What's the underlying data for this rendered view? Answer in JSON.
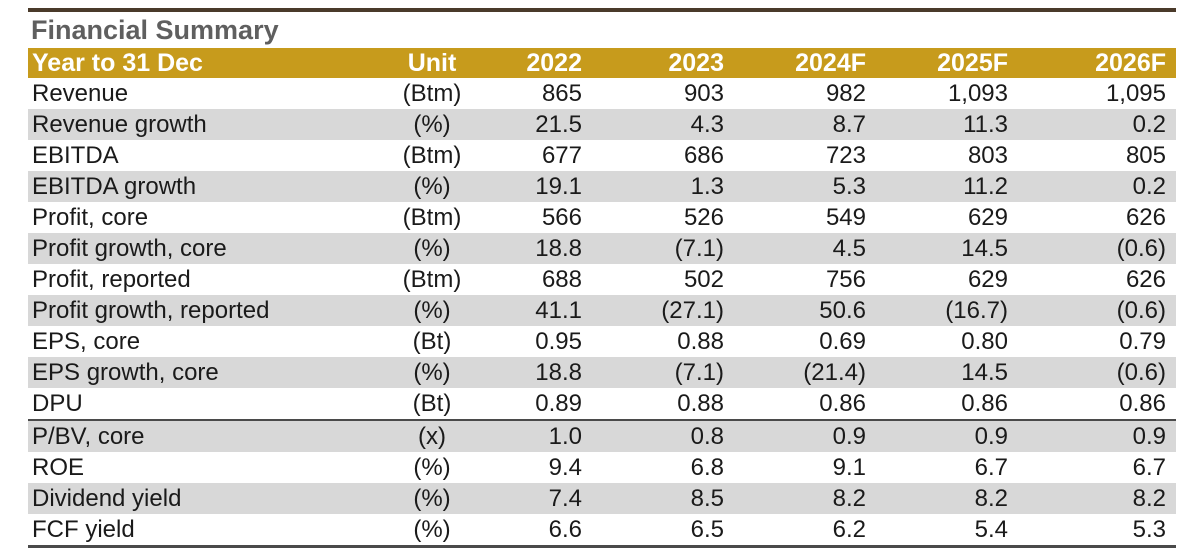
{
  "title": "Financial Summary",
  "header": [
    "Year to 31 Dec",
    "Unit",
    "2022",
    "2023",
    "2024F",
    "2025F",
    "2026F"
  ],
  "rows": [
    {
      "label": "Revenue",
      "unit": "(Btm)",
      "values": [
        "865",
        "903",
        "982",
        "1,093",
        "1,095"
      ]
    },
    {
      "label": "Revenue growth",
      "unit": "(%)",
      "values": [
        "21.5",
        "4.3",
        "8.7",
        "11.3",
        "0.2"
      ]
    },
    {
      "label": "EBITDA",
      "unit": "(Btm)",
      "values": [
        "677",
        "686",
        "723",
        "803",
        "805"
      ]
    },
    {
      "label": "EBITDA growth",
      "unit": "(%)",
      "values": [
        "19.1",
        "1.3",
        "5.3",
        "11.2",
        "0.2"
      ]
    },
    {
      "label": "Profit, core",
      "unit": "(Btm)",
      "values": [
        "566",
        "526",
        "549",
        "629",
        "626"
      ]
    },
    {
      "label": "Profit growth, core",
      "unit": "(%)",
      "values": [
        "18.8",
        "(7.1)",
        "4.5",
        "14.5",
        "(0.6)"
      ]
    },
    {
      "label": "Profit, reported",
      "unit": "(Btm)",
      "values": [
        "688",
        "502",
        "756",
        "629",
        "626"
      ]
    },
    {
      "label": "Profit growth, reported",
      "unit": "(%)",
      "values": [
        "41.1",
        "(27.1)",
        "50.6",
        "(16.7)",
        "(0.6)"
      ]
    },
    {
      "label": "EPS, core",
      "unit": "(Bt)",
      "values": [
        "0.95",
        "0.88",
        "0.69",
        "0.80",
        "0.79"
      ]
    },
    {
      "label": "EPS growth, core",
      "unit": "(%)",
      "values": [
        "18.8",
        "(7.1)",
        "(21.4)",
        "14.5",
        "(0.6)"
      ]
    },
    {
      "label": "DPU",
      "unit": "(Bt)",
      "values": [
        "0.89",
        "0.88",
        "0.86",
        "0.86",
        "0.86"
      ]
    },
    {
      "label": "P/BV, core",
      "unit": "(x)",
      "values": [
        "1.0",
        "0.8",
        "0.9",
        "0.9",
        "0.9"
      ]
    },
    {
      "label": "ROE",
      "unit": "(%)",
      "values": [
        "9.4",
        "6.8",
        "9.1",
        "6.7",
        "6.7"
      ]
    },
    {
      "label": "Dividend yield",
      "unit": "(%)",
      "values": [
        "7.4",
        "8.5",
        "8.2",
        "8.2",
        "8.2"
      ]
    },
    {
      "label": "FCF yield",
      "unit": "(%)",
      "values": [
        "6.6",
        "6.5",
        "6.2",
        "5.4",
        "5.3"
      ]
    }
  ],
  "colors": {
    "header_bg": "#c79b1c",
    "header_text": "#ffffff",
    "stripe": "#d8d8d8",
    "title_text": "#5f5f5f",
    "rule": "#4a3a2a"
  }
}
